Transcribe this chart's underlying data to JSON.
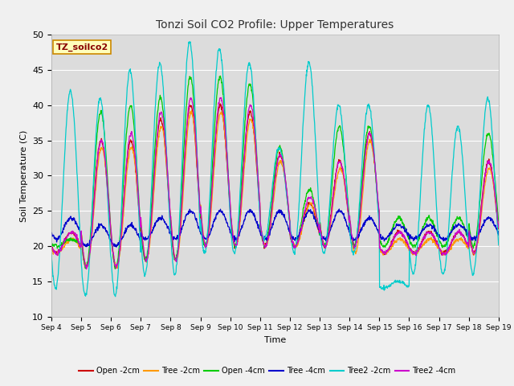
{
  "title": "Tonzi Soil CO2 Profile: Upper Temperatures",
  "xlabel": "Time",
  "ylabel": "Soil Temperature (C)",
  "ylim": [
    10,
    50
  ],
  "xlim": [
    0,
    15
  ],
  "plot_bg_color": "#dcdcdc",
  "fig_bg_color": "#f0f0f0",
  "series": [
    {
      "label": "Open -2cm",
      "color": "#cc0000"
    },
    {
      "label": "Tree -2cm",
      "color": "#ff9900"
    },
    {
      "label": "Open -4cm",
      "color": "#00cc00"
    },
    {
      "label": "Tree -4cm",
      "color": "#0000cc"
    },
    {
      "label": "Tree2 -2cm",
      "color": "#00cccc"
    },
    {
      "label": "Tree2 -4cm",
      "color": "#cc00cc"
    }
  ],
  "xtick_labels": [
    "Sep 4",
    "Sep 5",
    "Sep 6",
    "Sep 7",
    "Sep 8",
    "Sep 9",
    "Sep 10",
    "Sep 11",
    "Sep 12",
    "Sep 13",
    "Sep 14",
    "Sep 15",
    "Sep 16",
    "Sep 17",
    "Sep 18",
    "Sep 19"
  ],
  "annotation_text": "TZ_soilco2"
}
